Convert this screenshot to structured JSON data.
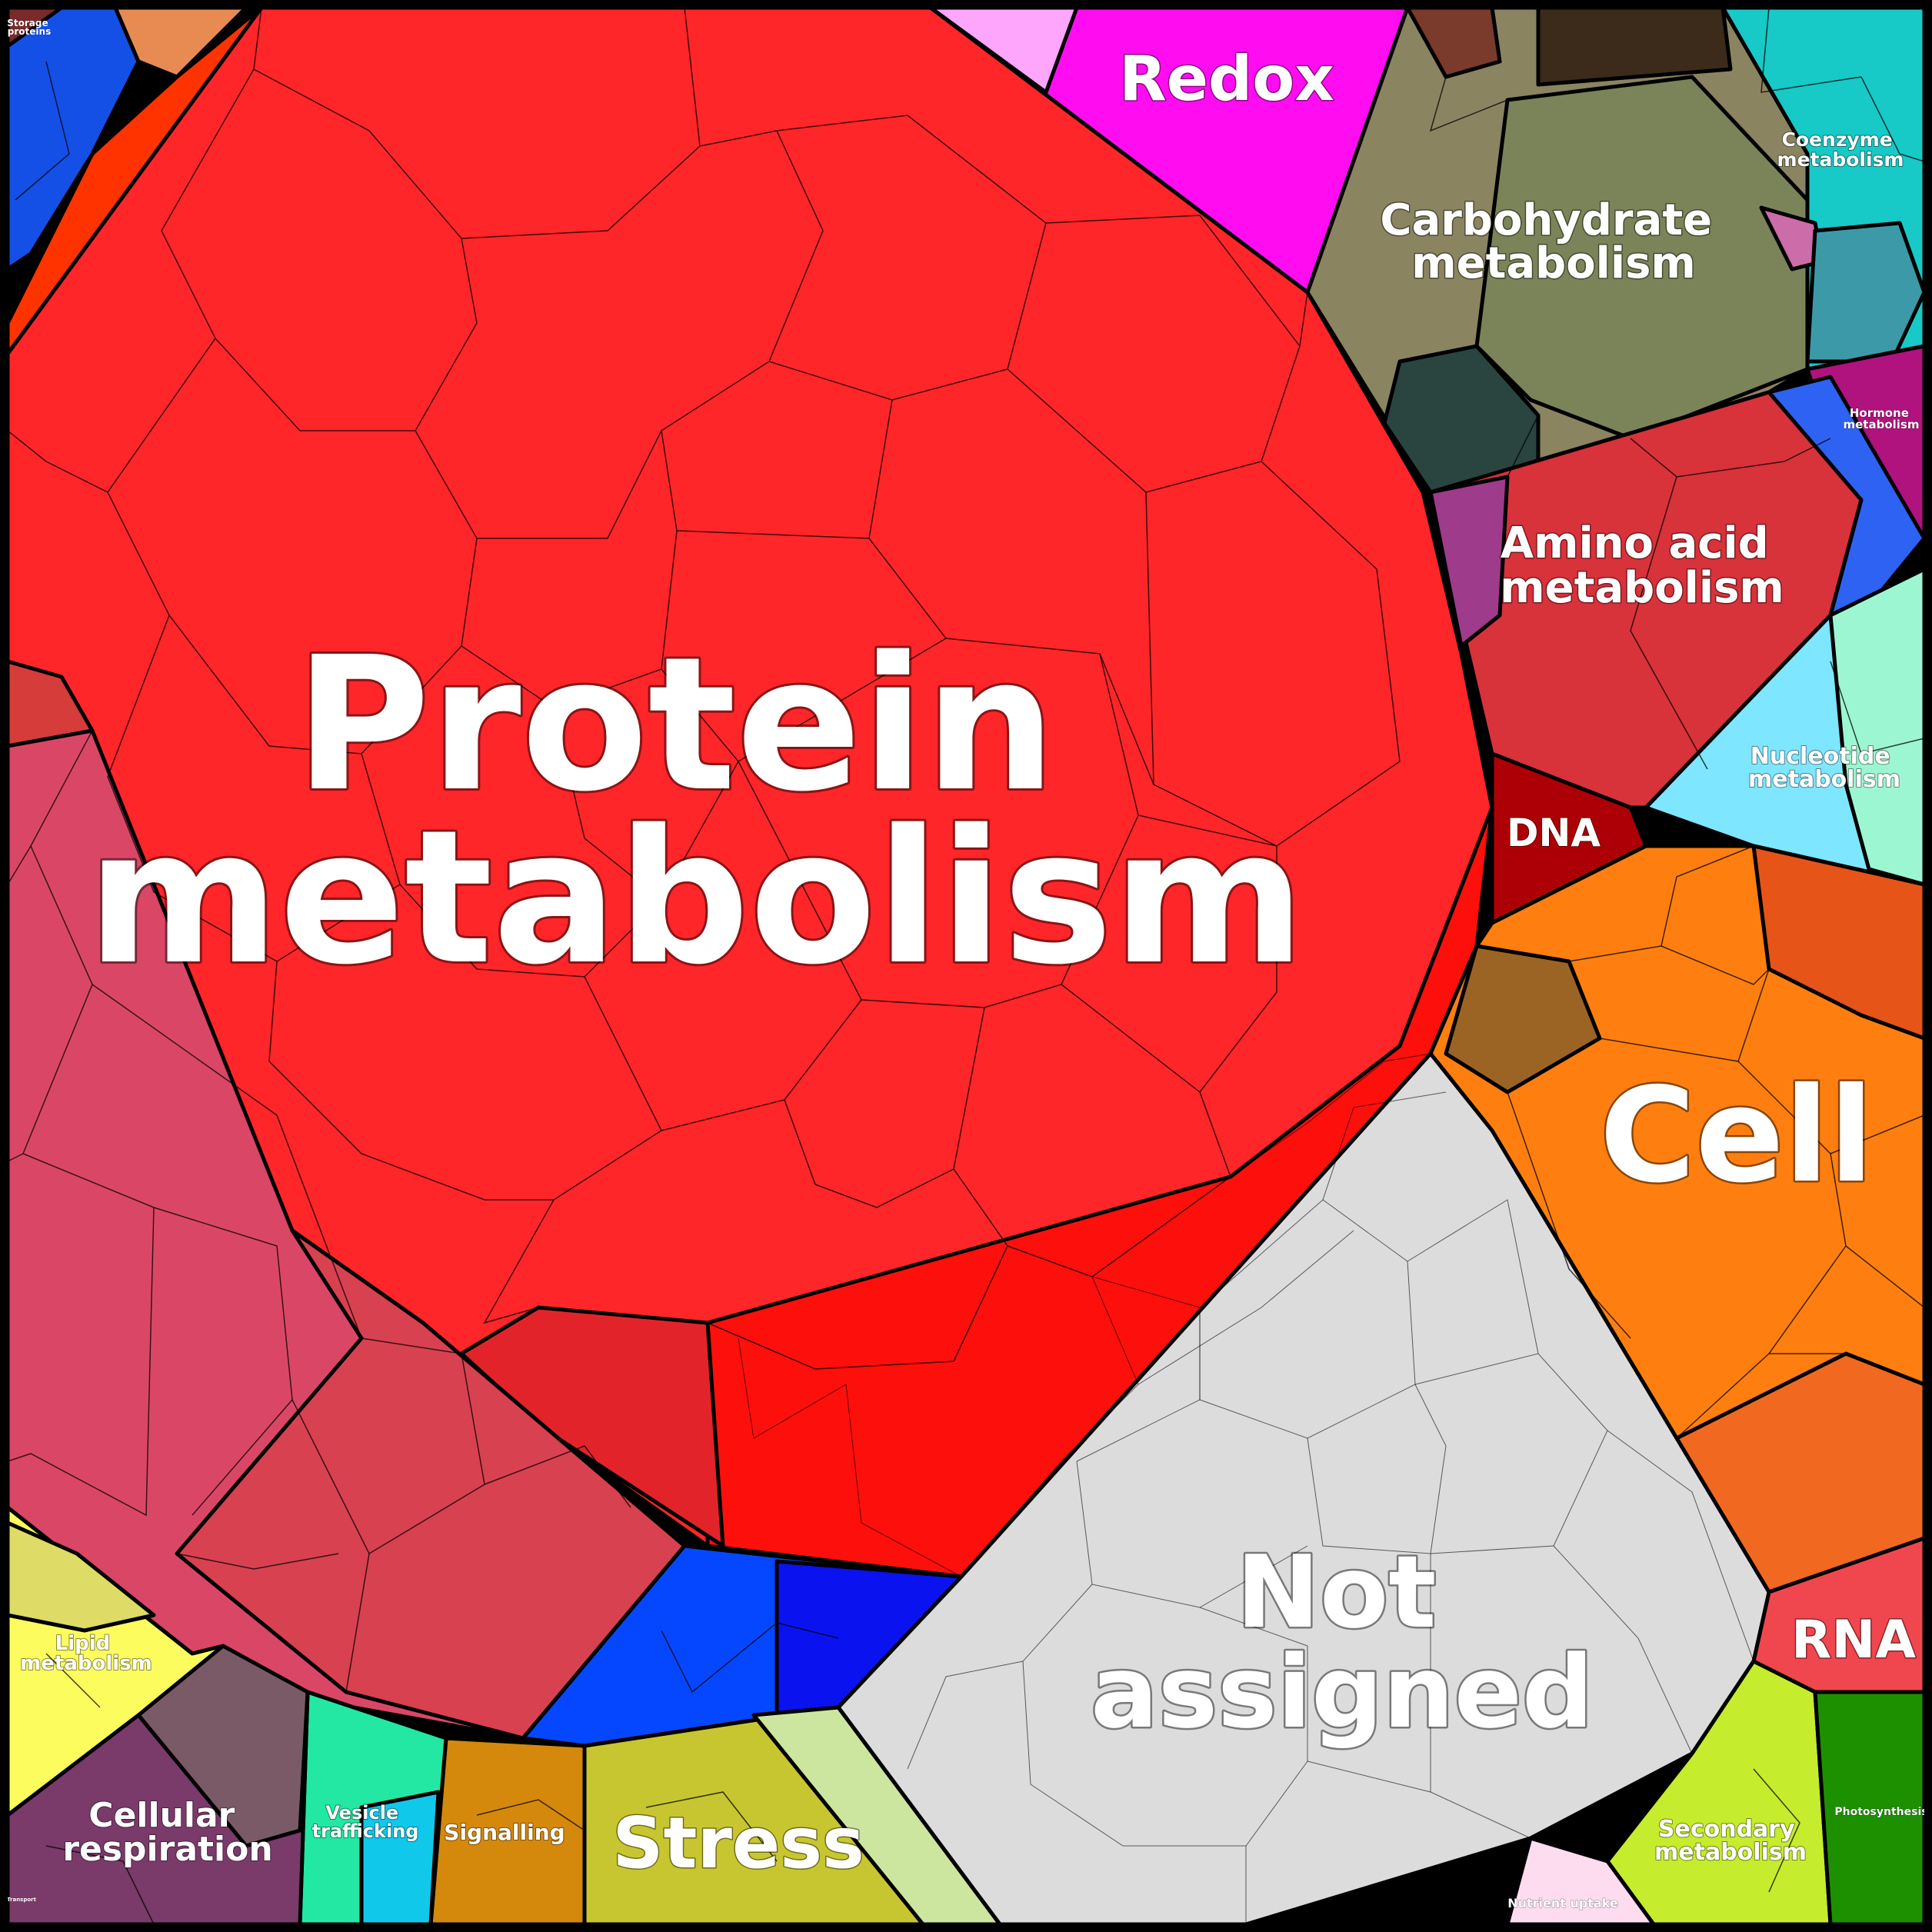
{
  "labels": {
    "protein": [
      "Protein",
      "metabolism"
    ],
    "redox": [
      "Redox"
    ],
    "carbohydrate": [
      "Carbohydrate",
      "metabolism"
    ],
    "coenzyme": [
      "Coenzyme",
      "metabolism"
    ],
    "hormone": [
      "Hormone",
      "metabolism"
    ],
    "amino": [
      "Amino acid",
      "metabolism"
    ],
    "nucleotide": [
      "Nucleotide",
      "metabolism"
    ],
    "dna": [
      "DNA"
    ],
    "cell": [
      "Cell"
    ],
    "rna": [
      "RNA"
    ],
    "not_assigned": [
      "Not",
      "assigned"
    ],
    "stress": [
      "Stress"
    ],
    "signalling": [
      "Signalling"
    ],
    "vesicle": [
      "Vesicle",
      "trafficking"
    ],
    "cellular_respiration": [
      "Cellular",
      "respiration"
    ],
    "lipid": [
      "Lipid",
      "metabolism"
    ],
    "secondary": [
      "Secondary",
      "metabolism"
    ],
    "photosynthesis": [
      "Photosynthesis"
    ],
    "nutrient": [
      "Nutrient uptake"
    ],
    "storage": [
      "Storage",
      "proteins"
    ],
    "transport": [
      "Transport"
    ]
  },
  "colors": {
    "protein": "#fe2629",
    "protein_dark": "#fd0f0c",
    "redox": "#ff0df0",
    "carbohydrate": "#8b8461",
    "coenzyme": "#17c9c7",
    "hormone": "#b0127e",
    "amino": "#d8323b",
    "nucleotide": "#7ee6fe",
    "dna": "#ad0006",
    "cell": "#fe7f10",
    "rna": "#f0474e",
    "not_assigned": "#dcdcdc",
    "stress": "#c8c630",
    "signalling": "#d4880c",
    "vesicle": "#22e8a4",
    "cellular_respiration": "#7a3a6a",
    "lipid": "#fdfc5e",
    "secondary": "#c5ec2d",
    "photosynthesis": "#1d9000",
    "pink_region": "#da4766",
    "blue_region": "#0547fe"
  }
}
